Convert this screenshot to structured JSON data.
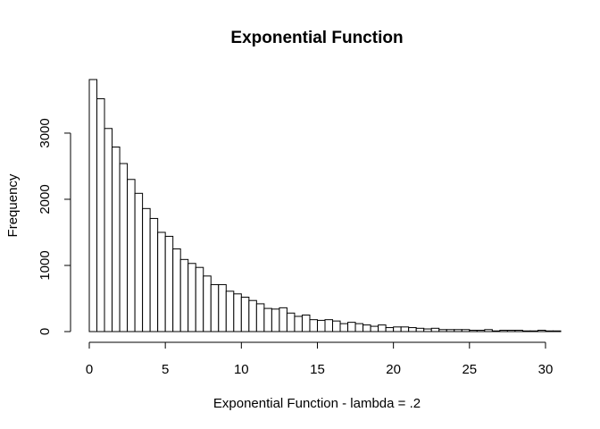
{
  "chart_data": {
    "type": "bar",
    "title": "Exponential Function",
    "xlabel": "Exponential Function - lambda = .2",
    "ylabel": "Frequency",
    "bin_width": 0.5,
    "x_start": 0,
    "values": [
      3810,
      3520,
      3070,
      2790,
      2540,
      2300,
      2090,
      1860,
      1710,
      1500,
      1440,
      1250,
      1090,
      1030,
      970,
      840,
      710,
      710,
      610,
      570,
      520,
      470,
      420,
      350,
      340,
      360,
      280,
      230,
      250,
      180,
      170,
      180,
      160,
      120,
      140,
      120,
      100,
      80,
      100,
      60,
      70,
      70,
      60,
      50,
      40,
      50,
      30,
      30,
      30,
      30,
      20,
      20,
      30,
      10,
      20,
      20,
      20,
      10,
      10,
      20,
      10,
      10
    ],
    "x_ticks": [
      0,
      5,
      10,
      15,
      20,
      25,
      30
    ],
    "x_tick_labels": [
      "0",
      "5",
      "10",
      "15",
      "20",
      "25",
      "30"
    ],
    "y_ticks": [
      0,
      1000,
      2000,
      3000
    ],
    "y_tick_labels": [
      "0",
      "1000",
      "2000",
      "3000"
    ],
    "xlim": [
      0,
      31
    ],
    "ylim": [
      0,
      3810
    ],
    "grid": false,
    "legend": "none",
    "bar_fill": "#ffffff",
    "bar_stroke": "#000000"
  }
}
